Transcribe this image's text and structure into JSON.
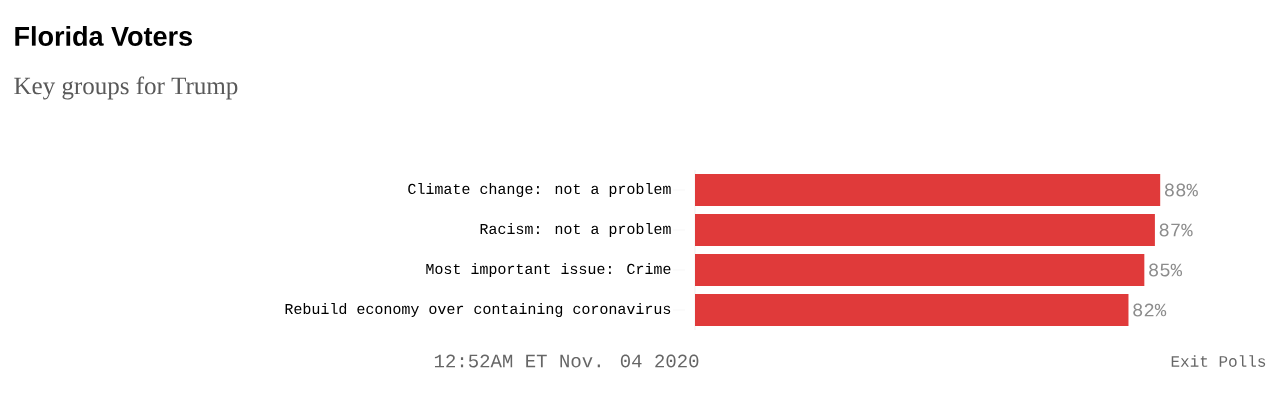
{
  "chart_data": {
    "type": "bar",
    "orientation": "horizontal",
    "title": "Florida Voters",
    "subtitle": "Key groups for Trump",
    "categories": [
      "Climate change: not a problem",
      "Racism: not a problem",
      "Most important issue: Crime",
      "Rebuild economy over containing coronavirus"
    ],
    "values": [
      88,
      87,
      85,
      82
    ],
    "value_labels": [
      "88%",
      "87%",
      "85%",
      "82%"
    ],
    "color": "#e03a3a",
    "annotations": [
      "12:52AM ET Nov. 04 2020",
      "Exit Polls"
    ]
  }
}
